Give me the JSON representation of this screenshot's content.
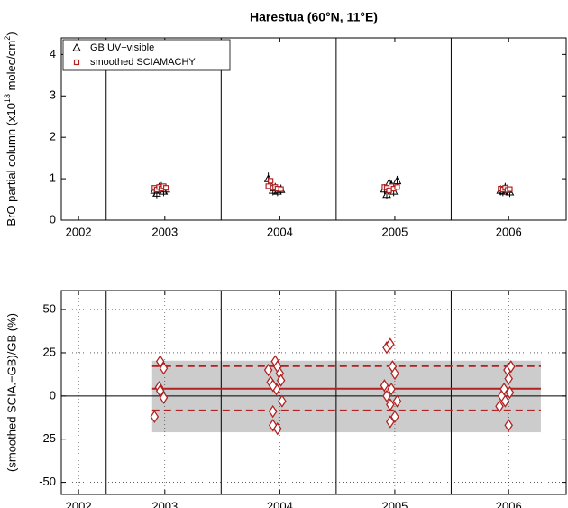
{
  "chart_data": [
    {
      "type": "scatter",
      "title": "Harestua (60°N, 11°E)",
      "ylabel": [
        "BrO partial column (x10",
        "13",
        " molec/cm",
        "2",
        ")"
      ],
      "xlim": [
        2002.61,
        2007.0
      ],
      "ylim": [
        0,
        4.4
      ],
      "xticks": [
        {
          "value": 2002.76,
          "label": "2002"
        },
        {
          "value": 2003.51,
          "label": "2003"
        },
        {
          "value": 2004.51,
          "label": "2004"
        },
        {
          "value": 2005.51,
          "label": "2005"
        },
        {
          "value": 2006.5,
          "label": "2006"
        }
      ],
      "yticks": [
        0,
        1,
        2,
        3,
        4
      ],
      "year_lines": [
        2003,
        2004,
        2005,
        2006
      ],
      "grid": false,
      "legend": "upper left",
      "series": [
        {
          "name": "GB UV−visible",
          "color": "#000000",
          "marker": "triangle",
          "x": [
            2003.42,
            2003.44,
            2003.46,
            2003.48,
            2003.5,
            2003.52,
            2004.41,
            2004.43,
            2004.45,
            2004.47,
            2004.49,
            2004.52,
            2005.42,
            2005.44,
            2005.46,
            2005.48,
            2005.5,
            2005.53,
            2006.43,
            2006.45,
            2006.47,
            2006.49,
            2006.51
          ],
          "values": [
            0.72,
            0.65,
            0.78,
            0.8,
            0.7,
            0.75,
            1.0,
            0.85,
            0.72,
            0.78,
            0.7,
            0.74,
            0.75,
            0.62,
            0.9,
            0.85,
            0.7,
            0.95,
            0.72,
            0.7,
            0.78,
            0.74,
            0.68
          ],
          "errors": [
            0.12,
            0.12,
            0.12,
            0.12,
            0.12,
            0.12,
            0.15,
            0.12,
            0.12,
            0.12,
            0.12,
            0.12,
            0.12,
            0.12,
            0.15,
            0.12,
            0.12,
            0.12,
            0.12,
            0.12,
            0.12,
            0.12,
            0.12
          ]
        },
        {
          "name": "smoothed SCIAMACHY",
          "color": "#b22222",
          "marker": "square",
          "x": [
            2003.42,
            2003.44,
            2003.46,
            2003.48,
            2003.5,
            2003.52,
            2004.41,
            2004.43,
            2004.45,
            2004.47,
            2004.49,
            2004.52,
            2005.42,
            2005.44,
            2005.46,
            2005.48,
            2005.5,
            2005.53,
            2006.43,
            2006.45,
            2006.47,
            2006.49,
            2006.51
          ],
          "values": [
            0.78,
            0.74,
            0.8,
            0.76,
            0.82,
            0.78,
            0.82,
            0.95,
            0.78,
            0.8,
            0.76,
            0.75,
            0.8,
            0.78,
            0.72,
            0.82,
            0.76,
            0.8,
            0.76,
            0.74,
            0.78,
            0.73,
            0.75
          ]
        }
      ]
    },
    {
      "type": "scatter",
      "ylabel": "(smoothed SCIA.−GB)/GB (%)",
      "xlim": [
        2002.61,
        2007.0
      ],
      "ylim": [
        -57,
        61
      ],
      "xticks": [
        {
          "value": 2002.76,
          "label": "2002"
        },
        {
          "value": 2003.51,
          "label": "2003"
        },
        {
          "value": 2004.51,
          "label": "2004"
        },
        {
          "value": 2005.51,
          "label": "2005"
        },
        {
          "value": 2006.5,
          "label": "2006"
        }
      ],
      "yticks": [
        -50,
        -25,
        0,
        25,
        50
      ],
      "year_lines": [
        2003,
        2004,
        2005,
        2006
      ],
      "grid": true,
      "zero_line": 0,
      "band_x": [
        2003.4,
        2006.78
      ],
      "band": [
        -21,
        20.4
      ],
      "mean": 4.2,
      "std_lines": [
        17.3,
        -8.4
      ],
      "series": [
        {
          "color": "#b22222",
          "marker": "diamond",
          "x": [
            2003.42,
            2003.46,
            2003.47,
            2003.5,
            2003.47,
            2003.5,
            2004.41,
            2004.43,
            2004.47,
            2004.49,
            2004.45,
            2004.45,
            2004.49,
            2004.51,
            2004.52,
            2004.48,
            2004.53,
            2004.45,
            2005.42,
            2005.44,
            2005.47,
            2005.45,
            2005.44,
            2005.47,
            2005.47,
            2005.51,
            2005.49,
            2005.51,
            2005.53,
            2005.48,
            2006.42,
            2006.44,
            2006.46,
            2006.49,
            2006.52,
            2006.5,
            2006.51,
            2006.5,
            2006.47
          ],
          "values": [
            -12,
            5,
            20,
            16,
            3,
            -1,
            15,
            8,
            20,
            17,
            -9,
            -17,
            -19,
            13,
            9,
            4,
            -3,
            6,
            6,
            28,
            30,
            3,
            0,
            -5,
            -15,
            -12,
            17,
            13,
            -3,
            4,
            -6,
            0,
            4,
            15,
            17,
            10,
            2,
            -17,
            -3
          ]
        }
      ]
    }
  ]
}
